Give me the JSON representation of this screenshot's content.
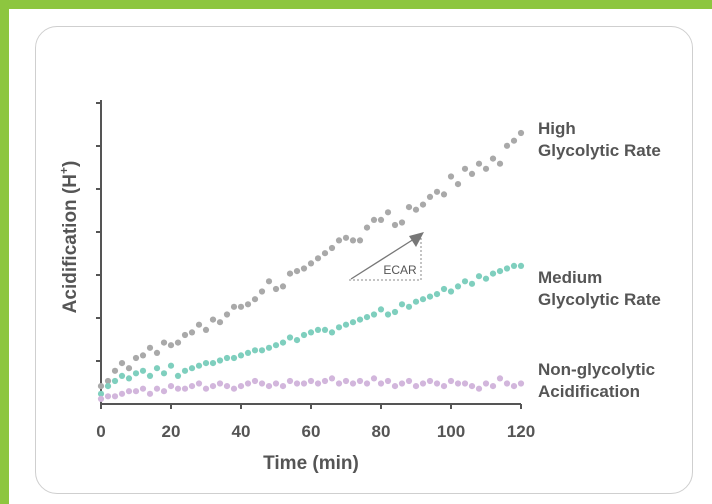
{
  "chart_data": {
    "type": "scatter",
    "xlabel": "Time (min)",
    "ylabel_main": "Acidification (H",
    "ylabel_sup": "+",
    "ylabel_close": ")",
    "xlim": [
      0,
      120
    ],
    "xticks": [
      0,
      20,
      40,
      60,
      80,
      100,
      120
    ],
    "annotation": "ECAR",
    "colors": {
      "axis": "#555555",
      "high": "#a9a9a9",
      "medium": "#7fcfbe",
      "low": "#d2b6dc",
      "frame": "#8dc63f"
    },
    "series": [
      {
        "key": "high",
        "label_lines": [
          "High",
          "Glycolytic Rate"
        ],
        "x": [
          0,
          2,
          4,
          6,
          8,
          10,
          12,
          14,
          16,
          18,
          20,
          22,
          24,
          26,
          28,
          30,
          32,
          34,
          36,
          38,
          40,
          42,
          44,
          46,
          48,
          50,
          52,
          54,
          56,
          58,
          60,
          62,
          64,
          66,
          68,
          70,
          72,
          74,
          76,
          78,
          80,
          82,
          84,
          86,
          88,
          90,
          92,
          94,
          96,
          98,
          100,
          102,
          104,
          106,
          108,
          110,
          112,
          114,
          116,
          118,
          120
        ],
        "y": [
          0.07,
          0.09,
          0.13,
          0.16,
          0.14,
          0.18,
          0.19,
          0.22,
          0.2,
          0.24,
          0.23,
          0.24,
          0.27,
          0.28,
          0.31,
          0.29,
          0.33,
          0.32,
          0.35,
          0.38,
          0.38,
          0.39,
          0.41,
          0.44,
          0.48,
          0.45,
          0.46,
          0.51,
          0.52,
          0.53,
          0.55,
          0.57,
          0.59,
          0.61,
          0.64,
          0.65,
          0.64,
          0.64,
          0.69,
          0.72,
          0.72,
          0.75,
          0.7,
          0.71,
          0.77,
          0.76,
          0.78,
          0.81,
          0.83,
          0.82,
          0.89,
          0.86,
          0.92,
          0.9,
          0.94,
          0.92,
          0.96,
          0.94,
          1.01,
          1.03,
          1.06
        ]
      },
      {
        "key": "medium",
        "label_lines": [
          "Medium",
          "Glycolytic Rate"
        ],
        "x": [
          0,
          2,
          4,
          6,
          8,
          10,
          12,
          14,
          16,
          18,
          20,
          22,
          24,
          26,
          28,
          30,
          32,
          34,
          36,
          38,
          40,
          42,
          44,
          46,
          48,
          50,
          52,
          54,
          56,
          58,
          60,
          62,
          64,
          66,
          68,
          70,
          72,
          74,
          76,
          78,
          80,
          82,
          84,
          86,
          88,
          90,
          92,
          94,
          96,
          98,
          100,
          102,
          104,
          106,
          108,
          110,
          112,
          114,
          116,
          118,
          120
        ],
        "y": [
          0.04,
          0.07,
          0.09,
          0.11,
          0.1,
          0.12,
          0.13,
          0.11,
          0.14,
          0.12,
          0.15,
          0.11,
          0.13,
          0.14,
          0.15,
          0.16,
          0.16,
          0.17,
          0.18,
          0.18,
          0.19,
          0.2,
          0.21,
          0.21,
          0.22,
          0.23,
          0.24,
          0.26,
          0.25,
          0.27,
          0.28,
          0.29,
          0.29,
          0.28,
          0.3,
          0.31,
          0.32,
          0.33,
          0.34,
          0.35,
          0.37,
          0.35,
          0.36,
          0.39,
          0.38,
          0.4,
          0.41,
          0.42,
          0.43,
          0.45,
          0.44,
          0.46,
          0.48,
          0.47,
          0.5,
          0.49,
          0.51,
          0.52,
          0.53,
          0.54,
          0.54
        ]
      },
      {
        "key": "low",
        "label_lines": [
          "Non-glycolytic",
          "Acidification"
        ],
        "x": [
          0,
          2,
          4,
          6,
          8,
          10,
          12,
          14,
          16,
          18,
          20,
          22,
          24,
          26,
          28,
          30,
          32,
          34,
          36,
          38,
          40,
          42,
          44,
          46,
          48,
          50,
          52,
          54,
          56,
          58,
          60,
          62,
          64,
          66,
          68,
          70,
          72,
          74,
          76,
          78,
          80,
          82,
          84,
          86,
          88,
          90,
          92,
          94,
          96,
          98,
          100,
          102,
          104,
          106,
          108,
          110,
          112,
          114,
          116,
          118,
          120
        ],
        "y": [
          0.02,
          0.03,
          0.03,
          0.04,
          0.05,
          0.05,
          0.06,
          0.04,
          0.06,
          0.05,
          0.07,
          0.06,
          0.06,
          0.07,
          0.08,
          0.06,
          0.07,
          0.08,
          0.07,
          0.06,
          0.07,
          0.08,
          0.09,
          0.08,
          0.07,
          0.08,
          0.07,
          0.09,
          0.08,
          0.08,
          0.09,
          0.08,
          0.09,
          0.1,
          0.08,
          0.09,
          0.08,
          0.09,
          0.08,
          0.1,
          0.08,
          0.09,
          0.07,
          0.08,
          0.09,
          0.07,
          0.08,
          0.09,
          0.08,
          0.07,
          0.09,
          0.08,
          0.08,
          0.07,
          0.06,
          0.08,
          0.07,
          0.1,
          0.08,
          0.07,
          0.08
        ]
      }
    ]
  }
}
